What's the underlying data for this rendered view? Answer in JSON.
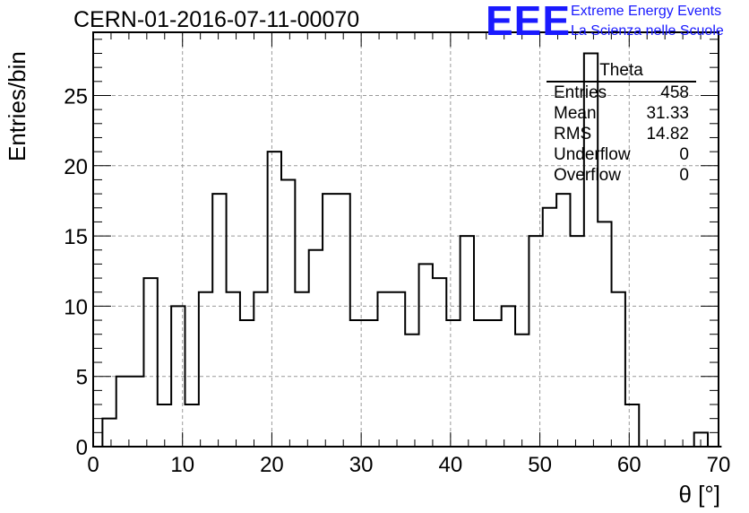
{
  "page": {
    "run_title": "CERN-01-2016-07-11-00070",
    "logo_text": "EEE",
    "logo_line1": "Extreme Energy Events",
    "logo_line2": "La Scienza nelle Scuole",
    "logo_color": "#1a1aff"
  },
  "stats_box": {
    "title": "Theta",
    "rows": [
      {
        "label": "Entries",
        "value": "458"
      },
      {
        "label": "Mean",
        "value": "31.33"
      },
      {
        "label": "RMS",
        "value": "14.82"
      },
      {
        "label": "Underflow",
        "value": "0"
      },
      {
        "label": "Overflow",
        "value": "0"
      }
    ]
  },
  "chart_data": {
    "type": "bar",
    "style": "step-histogram",
    "title": "CERN-01-2016-07-11-00070",
    "xlabel": "θ [°]",
    "ylabel": "Entries/bin",
    "xlim": [
      0,
      70
    ],
    "ylim": [
      0,
      29.5
    ],
    "grid": true,
    "bin_width": 1.54,
    "bin_start": 1.04,
    "values": [
      2,
      5,
      5,
      12,
      3,
      10,
      3,
      11,
      18,
      11,
      9,
      11,
      21,
      19,
      11,
      14,
      18,
      18,
      9,
      9,
      11,
      11,
      8,
      13,
      12,
      9,
      15,
      9,
      9,
      10,
      8,
      15,
      17,
      18,
      15,
      28,
      16,
      11,
      3,
      0,
      0,
      0,
      0,
      1,
      0
    ],
    "x_ticks": [
      "0",
      "10",
      "20",
      "30",
      "40",
      "50",
      "60",
      "70"
    ],
    "x_tick_values": [
      0,
      10,
      20,
      30,
      40,
      50,
      60,
      70
    ],
    "y_ticks": [
      "0",
      "5",
      "10",
      "15",
      "20",
      "25"
    ],
    "y_tick_values": [
      0,
      5,
      10,
      15,
      20,
      25
    ],
    "line_color": "#000000",
    "grid_color": "#9a9a9a"
  }
}
